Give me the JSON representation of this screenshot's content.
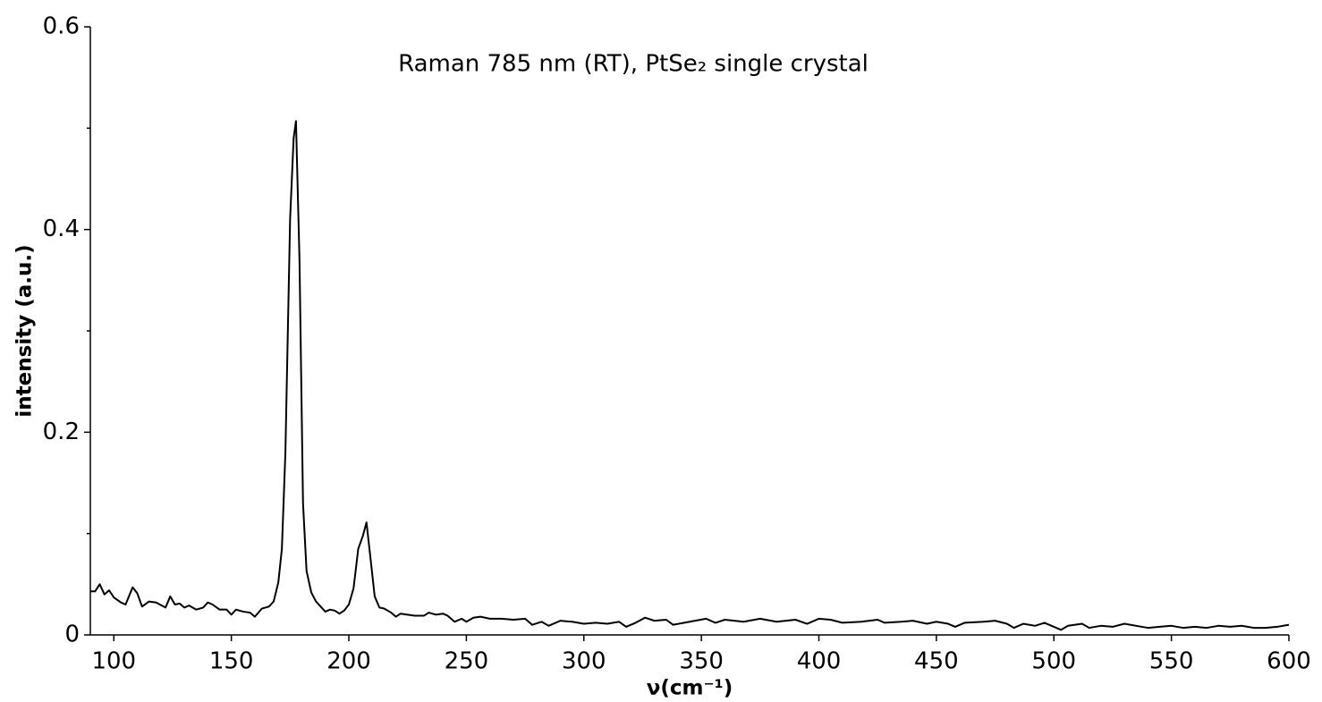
{
  "chart_data": {
    "type": "line",
    "title": "Raman 785 nm (RT), PtSe₂ single crystal",
    "x_label": "ν(cm⁻¹)",
    "y_label": "intensity (a.u.)",
    "color": "#000000",
    "xlim": [
      90,
      600
    ],
    "ylim": [
      0,
      0.6
    ],
    "xticks": [
      100,
      150,
      200,
      250,
      300,
      350,
      400,
      450,
      500,
      550,
      600
    ],
    "yticks": [
      0,
      0.2,
      0.4,
      0.6
    ],
    "yminorticks": [
      0.1,
      0.3,
      0.5
    ],
    "x": [
      90,
      92,
      94,
      96,
      98,
      100,
      103,
      105,
      108,
      110,
      112,
      115,
      118,
      122,
      124,
      126,
      128,
      130,
      132,
      135,
      138,
      140,
      142,
      145,
      148,
      150,
      152,
      155,
      158,
      160,
      163,
      166,
      168,
      170,
      171.5,
      173,
      175,
      176.5,
      177.5,
      179,
      180.5,
      182,
      184,
      186,
      188,
      190,
      192,
      194,
      196,
      198,
      200,
      202,
      204,
      206,
      207.5,
      209,
      211,
      213,
      215,
      218,
      220,
      222,
      225,
      228,
      232,
      234,
      237,
      240,
      242,
      245,
      248,
      250,
      253,
      256,
      260,
      265,
      270,
      275,
      278,
      282,
      285,
      290,
      295,
      300,
      305,
      310,
      315,
      318,
      322,
      326,
      330,
      335,
      338,
      345,
      352,
      356,
      360,
      368,
      375,
      382,
      390,
      395,
      400,
      405,
      410,
      418,
      425,
      428,
      435,
      440,
      446,
      450,
      455,
      458,
      462,
      470,
      475,
      480,
      483,
      487,
      492,
      496,
      500,
      503,
      506,
      512,
      515,
      520,
      525,
      530,
      535,
      540,
      545,
      550,
      555,
      560,
      565,
      570,
      575,
      580,
      585,
      590,
      595,
      600
    ],
    "values": [
      0.043,
      0.043,
      0.05,
      0.04,
      0.044,
      0.037,
      0.032,
      0.03,
      0.047,
      0.041,
      0.028,
      0.033,
      0.032,
      0.027,
      0.038,
      0.03,
      0.031,
      0.027,
      0.029,
      0.025,
      0.027,
      0.032,
      0.03,
      0.025,
      0.025,
      0.02,
      0.025,
      0.023,
      0.022,
      0.018,
      0.026,
      0.028,
      0.033,
      0.052,
      0.085,
      0.18,
      0.41,
      0.49,
      0.507,
      0.37,
      0.13,
      0.063,
      0.042,
      0.033,
      0.028,
      0.023,
      0.025,
      0.024,
      0.021,
      0.024,
      0.03,
      0.046,
      0.085,
      0.098,
      0.111,
      0.08,
      0.038,
      0.027,
      0.026,
      0.022,
      0.018,
      0.021,
      0.02,
      0.019,
      0.019,
      0.022,
      0.02,
      0.021,
      0.019,
      0.013,
      0.016,
      0.013,
      0.017,
      0.018,
      0.016,
      0.016,
      0.015,
      0.016,
      0.01,
      0.013,
      0.009,
      0.014,
      0.013,
      0.011,
      0.012,
      0.011,
      0.013,
      0.008,
      0.012,
      0.017,
      0.014,
      0.015,
      0.01,
      0.013,
      0.016,
      0.012,
      0.015,
      0.013,
      0.016,
      0.013,
      0.015,
      0.011,
      0.016,
      0.015,
      0.012,
      0.013,
      0.015,
      0.012,
      0.013,
      0.014,
      0.011,
      0.013,
      0.011,
      0.008,
      0.012,
      0.013,
      0.014,
      0.011,
      0.007,
      0.011,
      0.009,
      0.012,
      0.008,
      0.005,
      0.009,
      0.011,
      0.007,
      0.009,
      0.008,
      0.011,
      0.009,
      0.007,
      0.008,
      0.009,
      0.007,
      0.008,
      0.007,
      0.009,
      0.008,
      0.009,
      0.007,
      0.007,
      0.008,
      0.01
    ]
  }
}
